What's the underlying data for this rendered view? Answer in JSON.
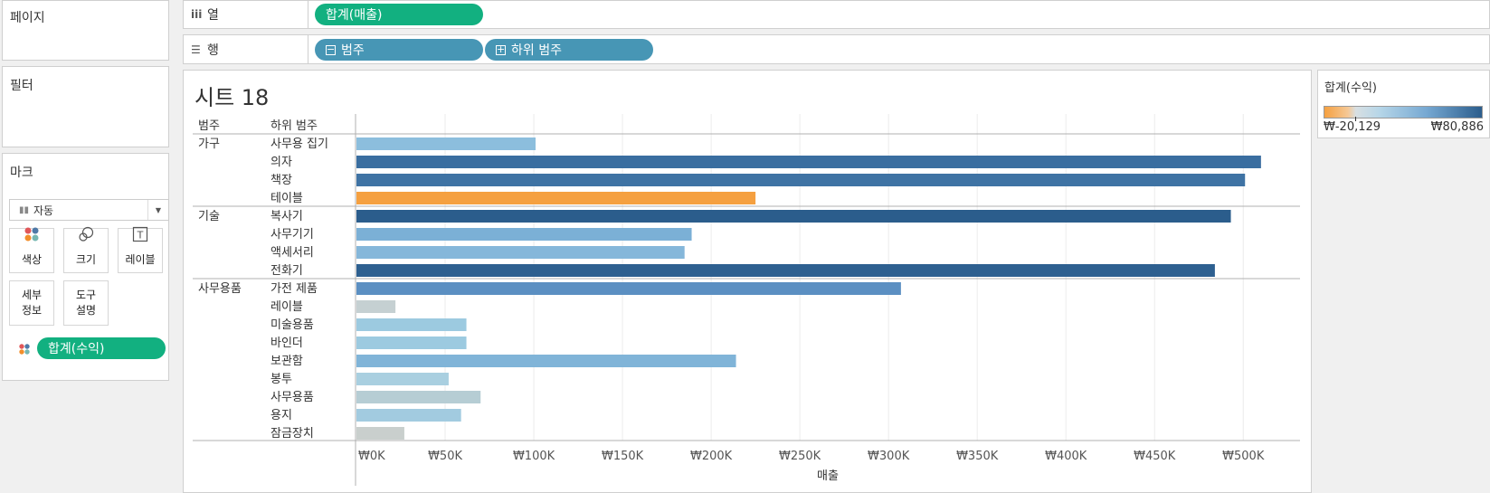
{
  "pages_card": {
    "title": "페이지"
  },
  "filters_card": {
    "title": "필터"
  },
  "marks_card": {
    "title": "마크",
    "mark_type": "자동",
    "buttons": {
      "color": "색상",
      "size": "크기",
      "label": "레이블",
      "detail": "세부\n정보",
      "tooltip": "도구\n설명"
    },
    "color_pill": "합계(수익)"
  },
  "columns_shelf": {
    "label": "열",
    "pill": "합계(매출)"
  },
  "rows_shelf": {
    "label": "행",
    "pills": [
      "범주",
      "하위 범주"
    ]
  },
  "sheet": {
    "title": "시트 18",
    "header_category": "범주",
    "header_subcategory": "하위 범주"
  },
  "legend": {
    "title": "합계(수익)",
    "min_label": "₩-20,129",
    "max_label": "₩80,886",
    "min_value": -20129,
    "max_value": 80886
  },
  "colors": {
    "pill_green": "#12b080",
    "pill_blue": "#4796b5",
    "negative": "#f5a040",
    "positive_dark": "#2b5d8c",
    "neutral": "#c8cfd0"
  },
  "chart_data": {
    "type": "bar",
    "orientation": "horizontal",
    "xlabel": "매출",
    "xlim": [
      0,
      532000
    ],
    "x_ticks": [
      0,
      50000,
      100000,
      150000,
      200000,
      250000,
      300000,
      350000,
      400000,
      450000,
      500000
    ],
    "x_tick_labels": [
      "₩0K",
      "₩50K",
      "₩100K",
      "₩150K",
      "₩200K",
      "₩250K",
      "₩300K",
      "₩350K",
      "₩400K",
      "₩450K",
      "₩500K"
    ],
    "color_measure": "합계(수익)",
    "groups": [
      {
        "category": "가구",
        "rows": [
          {
            "subcategory": "사무용 집기",
            "sales": 101000,
            "profit": 30000,
            "color": "#8cbedd"
          },
          {
            "subcategory": "의자",
            "sales": 510000,
            "profit": 64000,
            "color": "#3a6ea0"
          },
          {
            "subcategory": "책장",
            "sales": 501000,
            "profit": 61000,
            "color": "#3f73a4"
          },
          {
            "subcategory": "테이블",
            "sales": 225000,
            "profit": -20129,
            "color": "#f5a040"
          }
        ]
      },
      {
        "category": "기술",
        "rows": [
          {
            "subcategory": "복사기",
            "sales": 493000,
            "profit": 80886,
            "color": "#2b5d8c"
          },
          {
            "subcategory": "사무기기",
            "sales": 189000,
            "profit": 34000,
            "color": "#7bb0d6"
          },
          {
            "subcategory": "액세서리",
            "sales": 185000,
            "profit": 31000,
            "color": "#85b7da"
          },
          {
            "subcategory": "전화기",
            "sales": 484000,
            "profit": 77000,
            "color": "#2e6090"
          }
        ]
      },
      {
        "category": "사무용품",
        "rows": [
          {
            "subcategory": "가전 제품",
            "sales": 307000,
            "profit": 47000,
            "color": "#5b8fc2"
          },
          {
            "subcategory": "레이블",
            "sales": 22000,
            "profit": 5000,
            "color": "#c5d0d2"
          },
          {
            "subcategory": "미술용품",
            "sales": 62000,
            "profit": 14000,
            "color": "#9ccae0"
          },
          {
            "subcategory": "바인더",
            "sales": 62000,
            "profit": 15000,
            "color": "#9ccae0"
          },
          {
            "subcategory": "보관함",
            "sales": 214000,
            "profit": 30000,
            "color": "#80b4d8"
          },
          {
            "subcategory": "봉투",
            "sales": 52000,
            "profit": 11000,
            "color": "#a9cfe0"
          },
          {
            "subcategory": "사무용품",
            "sales": 70000,
            "profit": 8000,
            "color": "#b6cdd4"
          },
          {
            "subcategory": "용지",
            "sales": 59000,
            "profit": 13000,
            "color": "#a2cbe0"
          },
          {
            "subcategory": "잠금장치",
            "sales": 27000,
            "profit": 3000,
            "color": "#c9cfcd"
          }
        ]
      }
    ]
  }
}
